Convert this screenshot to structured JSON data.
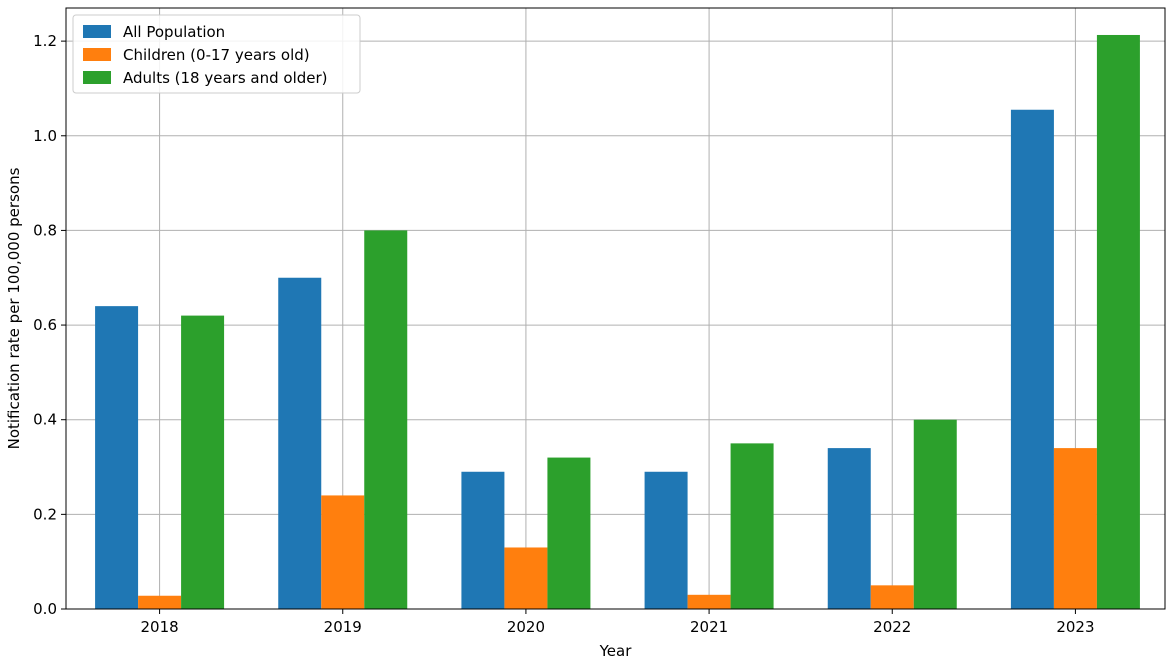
{
  "chart_data": {
    "type": "bar",
    "title": "",
    "xlabel": "Year",
    "ylabel": "Notification rate per 100,000 persons",
    "categories": [
      "2018",
      "2019",
      "2020",
      "2021",
      "2022",
      "2023"
    ],
    "ylim": [
      0,
      1.27
    ],
    "yticks": [
      "0.0",
      "0.2",
      "0.4",
      "0.6",
      "0.8",
      "1.0",
      "1.2"
    ],
    "grid": true,
    "legend_position": "top-left",
    "series": [
      {
        "name": "All Population",
        "color": "#1f77b4",
        "values": [
          0.64,
          0.7,
          0.29,
          0.29,
          0.34,
          1.055
        ]
      },
      {
        "name": "Children (0-17 years old)",
        "color": "#ff7f0e",
        "values": [
          0.028,
          0.24,
          0.13,
          0.03,
          0.05,
          0.34
        ]
      },
      {
        "name": "Adults (18 years and older)",
        "color": "#2ca02c",
        "values": [
          0.62,
          0.8,
          0.32,
          0.35,
          0.4,
          1.213
        ]
      }
    ]
  }
}
